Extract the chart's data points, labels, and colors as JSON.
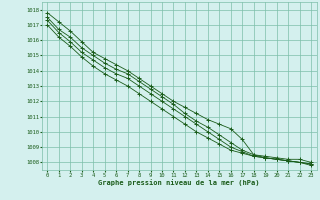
{
  "background_color": "#d4f0ee",
  "grid_color": "#7dbfaa",
  "line_color": "#1a5c1a",
  "title": "Graphe pression niveau de la mer (hPa)",
  "xlim": [
    -0.5,
    23.5
  ],
  "ylim": [
    1007.5,
    1018.5
  ],
  "yticks": [
    1008,
    1009,
    1010,
    1011,
    1012,
    1013,
    1014,
    1015,
    1016,
    1017,
    1018
  ],
  "xticks": [
    0,
    1,
    2,
    3,
    4,
    5,
    6,
    7,
    8,
    9,
    10,
    11,
    12,
    13,
    14,
    15,
    16,
    17,
    18,
    19,
    20,
    21,
    22,
    23
  ],
  "series": [
    [
      1017.8,
      1017.2,
      1016.6,
      1015.9,
      1015.2,
      1014.8,
      1014.4,
      1014.0,
      1013.5,
      1013.0,
      1012.5,
      1012.0,
      1011.6,
      1011.2,
      1010.8,
      1010.5,
      1010.2,
      1009.5,
      1008.5,
      1008.4,
      1008.3,
      1008.2,
      1008.2,
      1008.0
    ],
    [
      1017.5,
      1016.7,
      1016.2,
      1015.5,
      1015.0,
      1014.5,
      1014.1,
      1013.8,
      1013.3,
      1012.8,
      1012.3,
      1011.8,
      1011.2,
      1010.7,
      1010.3,
      1009.8,
      1009.3,
      1008.8,
      1008.5,
      1008.3,
      1008.2,
      1008.1,
      1008.0,
      1007.9
    ],
    [
      1017.3,
      1016.5,
      1015.9,
      1015.2,
      1014.7,
      1014.2,
      1013.8,
      1013.5,
      1013.0,
      1012.5,
      1012.0,
      1011.5,
      1011.0,
      1010.5,
      1010.0,
      1009.5,
      1009.0,
      1008.7,
      1008.4,
      1008.3,
      1008.2,
      1008.1,
      1008.0,
      1007.9
    ],
    [
      1017.0,
      1016.2,
      1015.6,
      1014.9,
      1014.3,
      1013.8,
      1013.4,
      1013.0,
      1012.5,
      1012.0,
      1011.5,
      1011.0,
      1010.5,
      1010.0,
      1009.6,
      1009.2,
      1008.8,
      1008.6,
      1008.4,
      1008.3,
      1008.2,
      1008.1,
      1008.0,
      1007.8
    ]
  ]
}
